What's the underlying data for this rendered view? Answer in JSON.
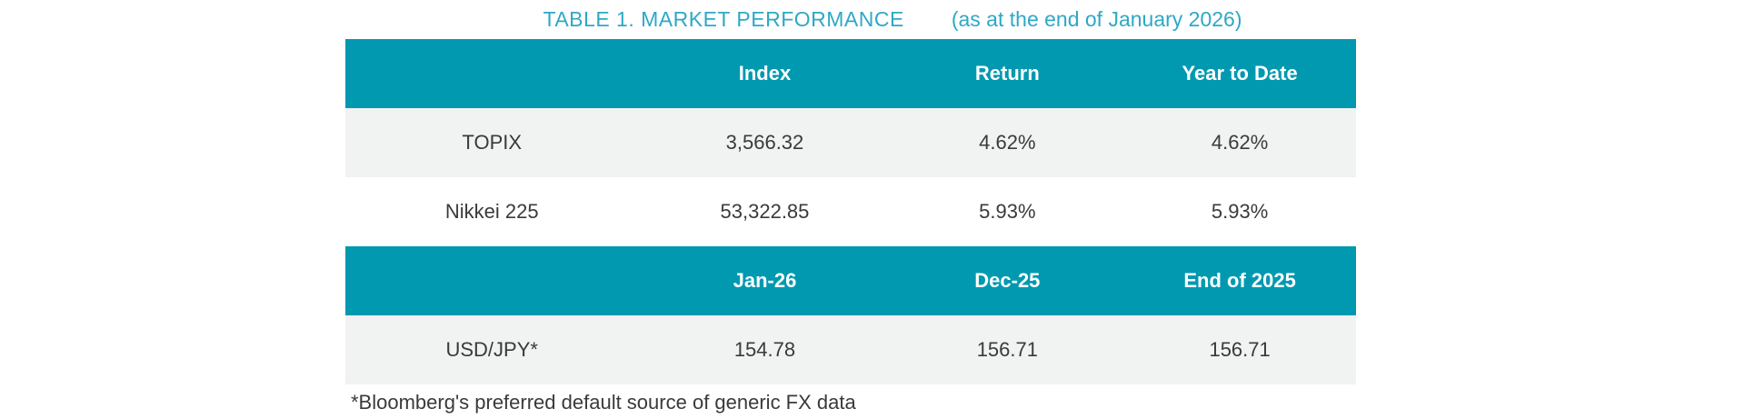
{
  "title": {
    "main": "TABLE 1. MARKET PERFORMANCE",
    "subtitle": "(as at the end of January 2026)"
  },
  "colors": {
    "header_bg": "#0099b0",
    "title_text": "#2fa8c6",
    "alt_row_bg": "#f1f2f2",
    "body_text": "#3a3a3a",
    "header_text": "#ffffff"
  },
  "table": {
    "section1": {
      "headers": [
        "",
        "Index",
        "Return",
        "Year to Date"
      ],
      "rows": [
        {
          "label": "TOPIX",
          "values": [
            "3,566.32",
            "4.62%",
            "4.62%"
          ]
        },
        {
          "label": "Nikkei 225",
          "values": [
            "53,322.85",
            "5.93%",
            "5.93%"
          ]
        }
      ]
    },
    "section2": {
      "headers": [
        "",
        "Jan-26",
        "Dec-25",
        "End of 2025"
      ],
      "rows": [
        {
          "label": "USD/JPY*",
          "values": [
            "154.78",
            "156.71",
            "156.71"
          ]
        }
      ]
    },
    "footnote": "*Bloomberg's preferred default source of generic FX data"
  },
  "chart_data": {
    "type": "table",
    "title": "TABLE 1. MARKET PERFORMANCE (as at the end of January 2026)",
    "sections": [
      {
        "columns": [
          "",
          "Index",
          "Return",
          "Year to Date"
        ],
        "rows": [
          [
            "TOPIX",
            "3,566.32",
            "4.62%",
            "4.62%"
          ],
          [
            "Nikkei 225",
            "53,322.85",
            "5.93%",
            "5.93%"
          ]
        ]
      },
      {
        "columns": [
          "",
          "Jan-26",
          "Dec-25",
          "End of 2025"
        ],
        "rows": [
          [
            "USD/JPY*",
            "154.78",
            "156.71",
            "156.71"
          ]
        ]
      }
    ],
    "footnote": "*Bloomberg's preferred default source of generic FX data"
  }
}
